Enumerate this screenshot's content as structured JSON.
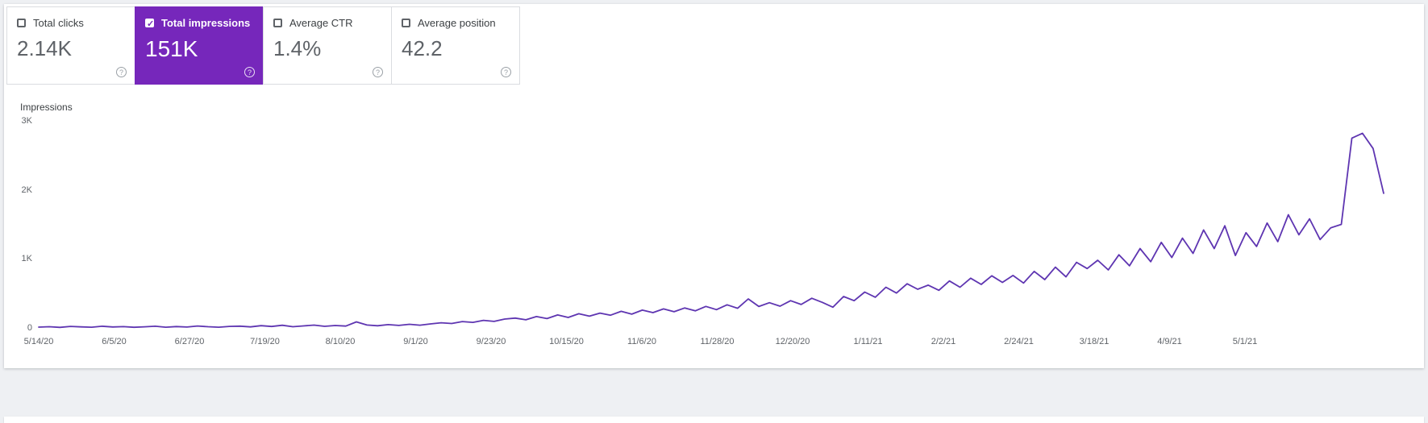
{
  "cards": [
    {
      "label": "Total clicks",
      "value": "2.14K",
      "checked": false,
      "selected": false
    },
    {
      "label": "Total impressions",
      "value": "151K",
      "checked": true,
      "selected": true
    },
    {
      "label": "Average CTR",
      "value": "1.4%",
      "checked": false,
      "selected": false
    },
    {
      "label": "Average position",
      "value": "42.2",
      "checked": false,
      "selected": false
    }
  ],
  "icons": {
    "check": "✓",
    "help": "?"
  },
  "colors": {
    "selected_card_bg": "#7627bb",
    "line": "#5e35b1",
    "axis_text": "#5f6368",
    "card_border": "#dadce0"
  },
  "chart_data": {
    "type": "line",
    "ylabel": "Impressions",
    "ylim": [
      0,
      3000
    ],
    "grid": false,
    "legend": "none",
    "y_ticks": [
      {
        "label": "0",
        "value": 0
      },
      {
        "label": "1K",
        "value": 1000
      },
      {
        "label": "2K",
        "value": 2000
      },
      {
        "label": "3K",
        "value": 3000
      }
    ],
    "x_ticks": [
      "5/14/20",
      "6/5/20",
      "6/27/20",
      "7/19/20",
      "8/10/20",
      "9/1/20",
      "9/23/20",
      "10/15/20",
      "11/6/20",
      "11/28/20",
      "12/20/20",
      "1/11/21",
      "2/2/21",
      "2/24/21",
      "3/18/21",
      "4/9/21",
      "5/1/21"
    ],
    "series": [
      {
        "name": "Impressions",
        "color": "#5e35b1",
        "values": [
          12,
          18,
          8,
          22,
          15,
          10,
          25,
          14,
          19,
          9,
          16,
          24,
          11,
          20,
          13,
          28,
          17,
          10,
          22,
          26,
          15,
          33,
          21,
          38,
          18,
          29,
          41,
          23,
          35,
          27,
          88,
          42,
          31,
          48,
          36,
          52,
          40,
          58,
          75,
          64,
          92,
          81,
          110,
          95,
          128,
          142,
          118,
          165,
          135,
          188,
          152,
          205,
          170,
          215,
          185,
          240,
          200,
          258,
          222,
          275,
          235,
          290,
          248,
          312,
          265,
          335,
          285,
          420,
          310,
          365,
          315,
          395,
          340,
          430,
          370,
          300,
          455,
          395,
          520,
          445,
          590,
          505,
          640,
          560,
          620,
          545,
          680,
          590,
          720,
          630,
          755,
          660,
          760,
          650,
          820,
          700,
          880,
          740,
          950,
          860,
          980,
          840,
          1060,
          900,
          1150,
          960,
          1240,
          1020,
          1300,
          1080,
          1420,
          1150,
          1480,
          1050,
          1380,
          1180,
          1520,
          1250,
          1640,
          1350,
          1580,
          1280,
          1450,
          1500,
          2750,
          2820,
          2600,
          1950
        ]
      }
    ]
  }
}
